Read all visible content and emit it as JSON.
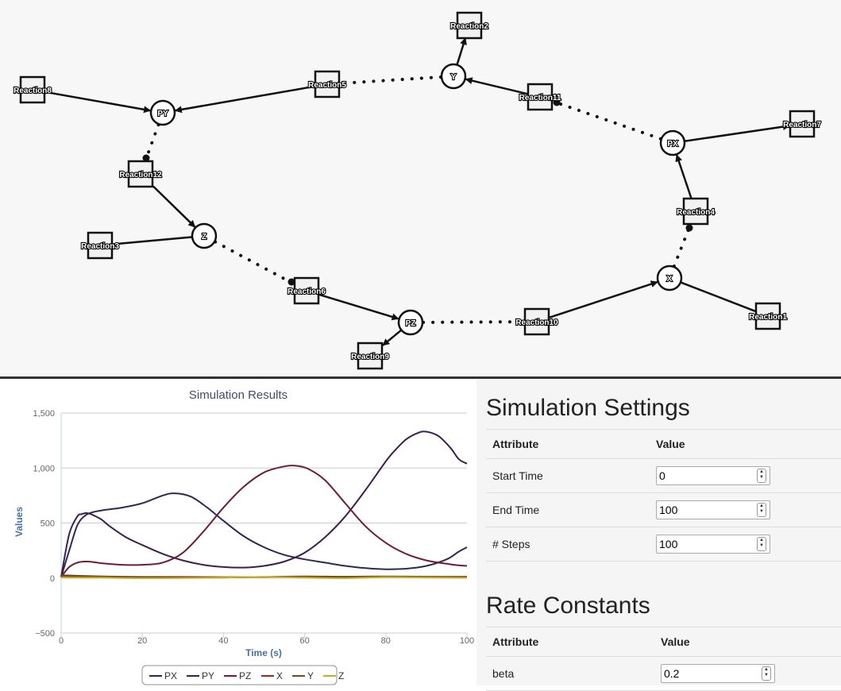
{
  "network": {
    "species": [
      {
        "id": "PY",
        "label": "PY"
      },
      {
        "id": "Y",
        "label": "Y"
      },
      {
        "id": "PX",
        "label": "PX"
      },
      {
        "id": "X",
        "label": "X"
      },
      {
        "id": "PZ",
        "label": "PZ"
      },
      {
        "id": "Z",
        "label": "Z"
      }
    ],
    "reactions": [
      {
        "id": "r1",
        "label": "Reaction1"
      },
      {
        "id": "r2",
        "label": "Reaction2"
      },
      {
        "id": "r3",
        "label": "Reaction3"
      },
      {
        "id": "r4",
        "label": "Reaction4"
      },
      {
        "id": "r5",
        "label": "Reaction5"
      },
      {
        "id": "r6",
        "label": "Reaction6"
      },
      {
        "id": "r7",
        "label": "Reaction7"
      },
      {
        "id": "r8",
        "label": "Reaction8"
      },
      {
        "id": "r9",
        "label": "Reaction9"
      },
      {
        "id": "r10",
        "label": "Reaction10"
      },
      {
        "id": "r11",
        "label": "Reaction11"
      },
      {
        "id": "r12",
        "label": "Reaction12"
      }
    ]
  },
  "chart_data": {
    "type": "line",
    "title": "Simulation Results",
    "xlabel": "Time (s)",
    "ylabel": "Values",
    "xlim": [
      0,
      100
    ],
    "ylim": [
      -500,
      1500
    ],
    "xticks": [
      0,
      20,
      40,
      60,
      80,
      100
    ],
    "yticks": [
      -500,
      0,
      500,
      1000,
      1500
    ],
    "ytick_labels": [
      "−500",
      "0",
      "500",
      "1,000",
      "1,500"
    ],
    "grid": true,
    "legend": "bottom",
    "series": [
      {
        "name": "PX",
        "color": "#2b2a55",
        "x": [
          0,
          2,
          4,
          6,
          8,
          10,
          15,
          20,
          25,
          28,
          32,
          36,
          40,
          45,
          50,
          55,
          60,
          65,
          70,
          75,
          80,
          85,
          90,
          95,
          98,
          100
        ],
        "y": [
          10,
          250,
          480,
          570,
          600,
          615,
          640,
          680,
          750,
          770,
          740,
          640,
          520,
          380,
          280,
          210,
          170,
          140,
          110,
          90,
          80,
          85,
          110,
          170,
          240,
          280
        ]
      },
      {
        "name": "PY",
        "color": "#3b1f4e",
        "x": [
          0,
          2,
          4,
          5,
          6,
          7,
          8,
          10,
          12,
          16,
          20,
          25,
          30,
          35,
          40,
          45,
          50,
          55,
          60,
          65,
          70,
          75,
          80,
          82,
          85,
          88,
          90,
          93,
          96,
          98,
          100
        ],
        "y": [
          10,
          400,
          560,
          580,
          590,
          585,
          570,
          530,
          470,
          370,
          300,
          220,
          160,
          120,
          100,
          95,
          110,
          150,
          230,
          370,
          560,
          800,
          1060,
          1150,
          1260,
          1320,
          1330,
          1290,
          1180,
          1080,
          1040
        ]
      },
      {
        "name": "PZ",
        "color": "#6b1e34",
        "x": [
          0,
          2,
          4,
          6,
          8,
          10,
          15,
          20,
          25,
          30,
          35,
          40,
          45,
          50,
          55,
          58,
          61,
          65,
          70,
          75,
          80,
          85,
          90,
          95,
          98,
          100
        ],
        "y": [
          10,
          100,
          140,
          150,
          145,
          135,
          120,
          120,
          140,
          230,
          420,
          640,
          830,
          960,
          1015,
          1020,
          990,
          890,
          680,
          470,
          320,
          220,
          160,
          130,
          115,
          110
        ]
      },
      {
        "name": "X",
        "color": "#8a3320",
        "x": [
          0,
          10,
          20,
          30,
          40,
          50,
          60,
          70,
          80,
          90,
          100
        ],
        "y": [
          25,
          15,
          10,
          10,
          8,
          8,
          10,
          10,
          10,
          10,
          12
        ]
      },
      {
        "name": "Y",
        "color": "#6a4d25",
        "x": [
          0,
          10,
          20,
          30,
          40,
          50,
          60,
          70,
          80,
          90,
          100
        ],
        "y": [
          18,
          12,
          8,
          5,
          5,
          10,
          15,
          12,
          15,
          12,
          8
        ]
      },
      {
        "name": "Z",
        "color": "#c9ad1e",
        "x": [
          0,
          10,
          20,
          30,
          40,
          50,
          60,
          70,
          80,
          90,
          100
        ],
        "y": [
          5,
          3,
          -2,
          0,
          5,
          10,
          3,
          -2,
          8,
          5,
          2
        ]
      }
    ]
  },
  "settings": {
    "title": "Simulation Settings",
    "header_attribute": "Attribute",
    "header_value": "Value",
    "rows": [
      {
        "label": "Start Time",
        "value": "0"
      },
      {
        "label": "End Time",
        "value": "100"
      },
      {
        "label": "# Steps",
        "value": "100"
      }
    ]
  },
  "rates": {
    "title": "Rate Constants",
    "header_attribute": "Attribute",
    "header_value": "Value",
    "rows": [
      {
        "label": "beta",
        "value": "0.2"
      }
    ]
  }
}
